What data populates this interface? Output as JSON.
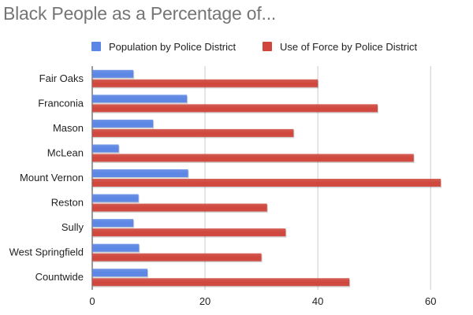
{
  "chart_data": {
    "type": "bar",
    "orientation": "horizontal",
    "title": "Black People as a Percentage of...",
    "categories": [
      "Fair Oaks",
      "Franconia",
      "Mason",
      "McLean",
      "Mount Vernon",
      "Reston",
      "Sully",
      "West Springfield",
      "Countwide"
    ],
    "series": [
      {
        "name": "Population by Police District",
        "color": "#5b86e5",
        "values": [
          7.3,
          16.8,
          10.8,
          4.7,
          17.0,
          8.2,
          7.3,
          8.3,
          9.8
        ]
      },
      {
        "name": "Use of Force by Police District",
        "color": "#d0463c",
        "values": [
          40.0,
          50.6,
          35.7,
          57.0,
          61.8,
          31.0,
          34.3,
          30.0,
          45.6
        ]
      }
    ],
    "xlim": [
      0,
      65
    ],
    "xticks": [
      0,
      20,
      40,
      60
    ],
    "grid": true,
    "legend_position": "top"
  }
}
